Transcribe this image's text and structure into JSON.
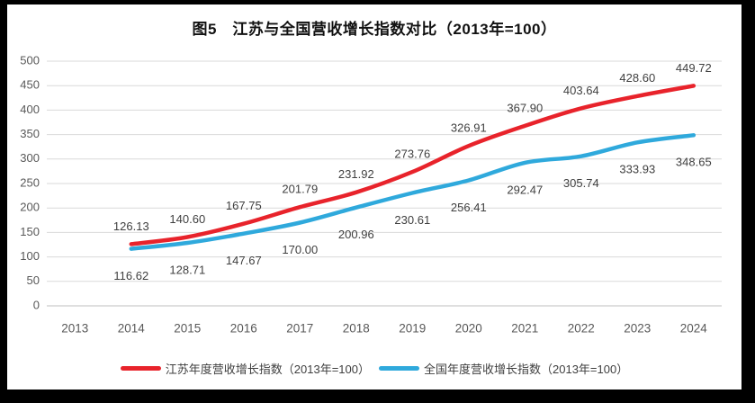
{
  "title": "图5　江苏与全国营收增长指数对比（2013年=100）",
  "colors": {
    "jiangsu_line": "#E8232B",
    "national_line": "#2FA9DC",
    "gridline": "#D9D9D9",
    "axis_line": "#BFBFBF",
    "axis_text": "#595959",
    "data_label_text": "#3F3F3F",
    "title_text": "#111111",
    "canvas_background": "#FFFFFF",
    "frame_background": "#000000"
  },
  "chart_data": {
    "type": "line",
    "title": "图5　江苏与全国营收增长指数对比（2013年=100）",
    "categories": [
      "2013",
      "2014",
      "2015",
      "2016",
      "2017",
      "2018",
      "2019",
      "2020",
      "2021",
      "2022",
      "2023",
      "2024"
    ],
    "series": [
      {
        "name": "江苏年度营收增长指数（2013年=100）",
        "color": "#E8232B",
        "label_position": "above",
        "values": [
          null,
          126.13,
          140.6,
          167.75,
          201.79,
          231.92,
          273.76,
          326.91,
          367.9,
          403.64,
          428.6,
          449.72
        ]
      },
      {
        "name": "全国年度营收增长指数（2013年=100）",
        "color": "#2FA9DC",
        "label_position": "below",
        "values": [
          null,
          116.62,
          128.71,
          147.67,
          170.0,
          200.96,
          230.61,
          256.41,
          292.47,
          305.74,
          333.93,
          348.65
        ]
      }
    ],
    "y_ticks": [
      0,
      50,
      100,
      150,
      200,
      250,
      300,
      350,
      400,
      450,
      500
    ],
    "ylim": [
      0,
      500
    ],
    "grid": true,
    "smooth_lines": true,
    "data_label_decimals": 2,
    "legend_position": "bottom"
  }
}
